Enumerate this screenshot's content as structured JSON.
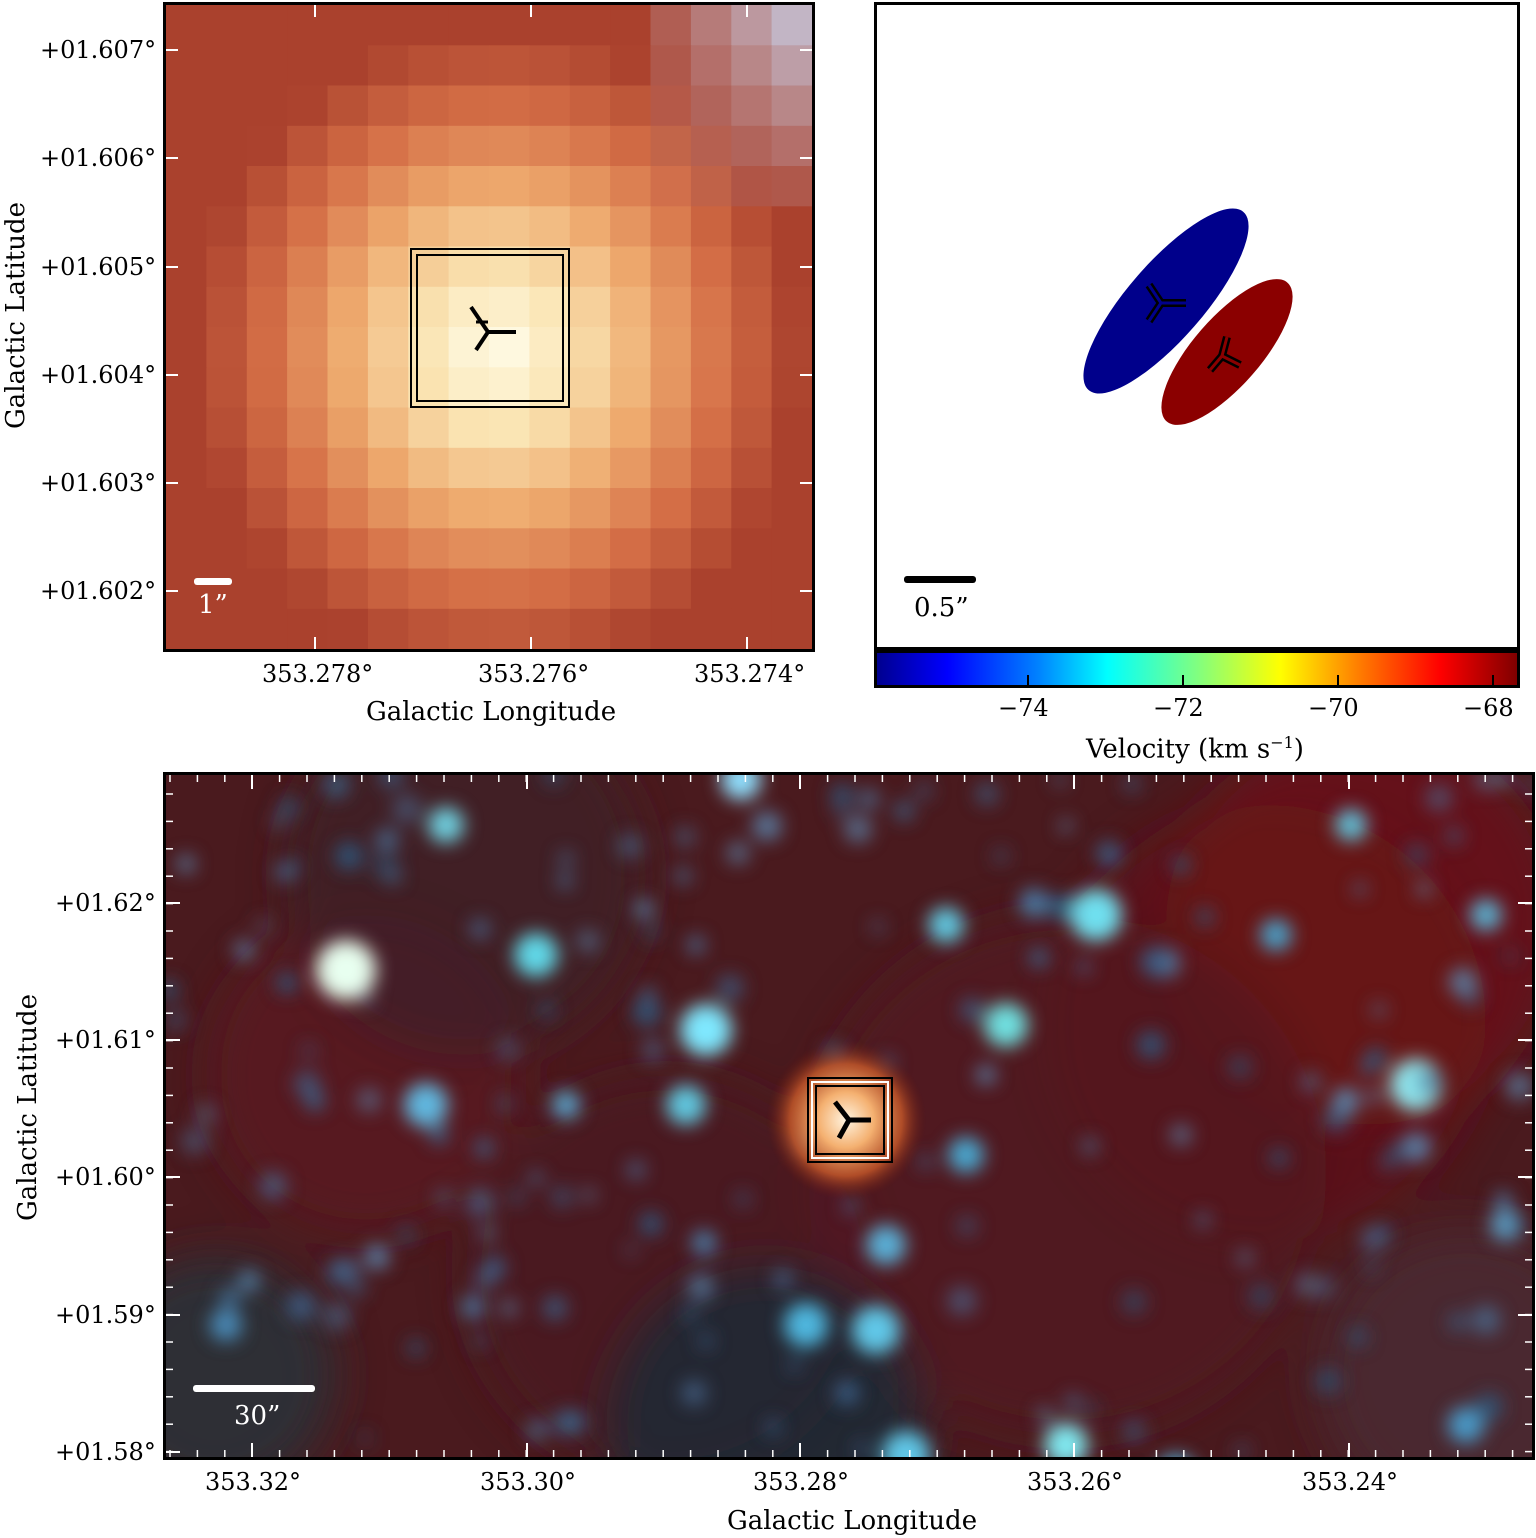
{
  "top_left": {
    "y_ticks": [
      "+01.607°",
      "+01.606°",
      "+01.605°",
      "+01.604°",
      "+01.603°",
      "+01.602°"
    ],
    "x_ticks": [
      "353.278°",
      "353.276°",
      "353.274°"
    ],
    "xlabel": "Galactic Longitude",
    "ylabel": "Galactic Latitude",
    "scale_label": "1”"
  },
  "top_right": {
    "scale_label": "0.5”",
    "blue_color": "#00008b",
    "red_color": "#8b0000"
  },
  "colorbar": {
    "ticks": [
      "−74",
      "−72",
      "−70",
      "−68"
    ],
    "label": "Velocity (km s",
    "label_sup": "−1",
    "label_end": ")"
  },
  "bottom": {
    "y_ticks": [
      "+01.62°",
      "+01.61°",
      "+01.60°",
      "+01.59°",
      "+01.58°"
    ],
    "x_ticks": [
      "353.32°",
      "353.30°",
      "353.28°",
      "353.26°",
      "353.24°"
    ],
    "xlabel": "Galactic Longitude",
    "ylabel": "Galactic Latitude",
    "scale_label": "30”"
  }
}
